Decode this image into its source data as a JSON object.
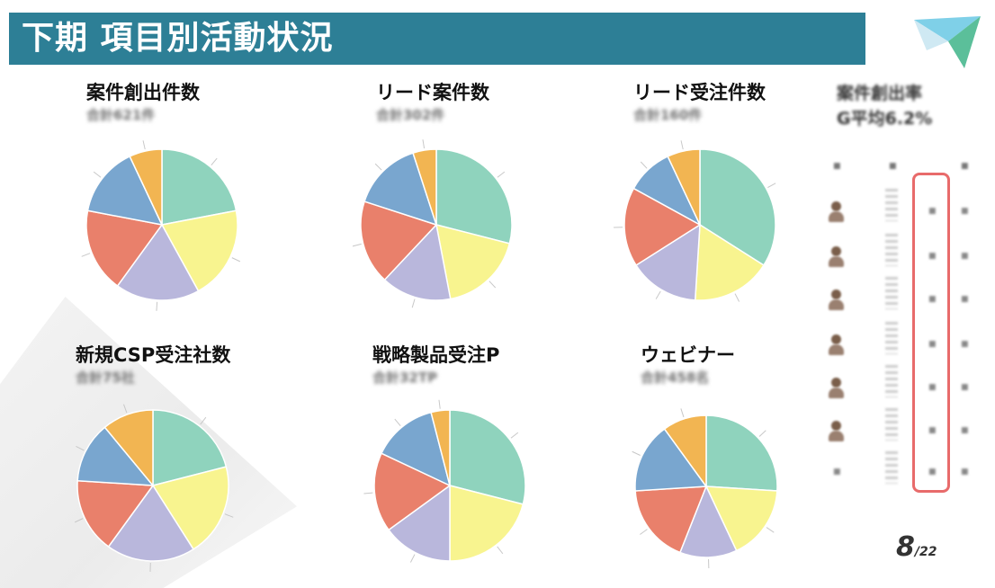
{
  "slide": {
    "title": "下期 項目別活動状況",
    "page_current": "8",
    "page_total": "/22"
  },
  "colors": {
    "title_bar": "#2d7f96",
    "highlight_border": "#e86b6b",
    "slice_palette": [
      "#8fd3bd",
      "#f8f48f",
      "#b9b7dc",
      "#e9806b",
      "#79a6cf",
      "#f2b552"
    ]
  },
  "chart_data": [
    {
      "type": "pie",
      "title": "案件創出件数",
      "subtitle": "合計621件",
      "values": [
        22,
        20,
        18,
        18,
        15,
        7
      ],
      "colors": [
        "#8fd3bd",
        "#f8f48f",
        "#b9b7dc",
        "#e9806b",
        "#79a6cf",
        "#f2b552"
      ]
    },
    {
      "type": "pie",
      "title": "リード案件数",
      "subtitle": "合計302件",
      "values": [
        29,
        18,
        15,
        18,
        15,
        5
      ],
      "colors": [
        "#8fd3bd",
        "#f8f48f",
        "#b9b7dc",
        "#e9806b",
        "#79a6cf",
        "#f2b552"
      ]
    },
    {
      "type": "pie",
      "title": "リード受注件数",
      "subtitle": "合計160件",
      "values": [
        34,
        17,
        15,
        17,
        10,
        7
      ],
      "colors": [
        "#8fd3bd",
        "#f8f48f",
        "#b9b7dc",
        "#e9806b",
        "#79a6cf",
        "#f2b552"
      ]
    },
    {
      "type": "pie",
      "title": "新規CSP受注社数",
      "subtitle": "合計75社",
      "values": [
        21,
        20,
        19,
        16,
        13,
        11
      ],
      "colors": [
        "#8fd3bd",
        "#f8f48f",
        "#b9b7dc",
        "#e9806b",
        "#79a6cf",
        "#f2b552"
      ]
    },
    {
      "type": "pie",
      "title": "戦略製品受注P",
      "subtitle": "合計32TP",
      "values": [
        29,
        21,
        15,
        17,
        14,
        4
      ],
      "colors": [
        "#8fd3bd",
        "#f8f48f",
        "#b9b7dc",
        "#e9806b",
        "#79a6cf",
        "#f2b552"
      ]
    },
    {
      "type": "pie",
      "title": "ウェビナー",
      "subtitle": "合計458名",
      "values": [
        26,
        17,
        13,
        18,
        16,
        10
      ],
      "colors": [
        "#8fd3bd",
        "#f8f48f",
        "#b9b7dc",
        "#e9806b",
        "#79a6cf",
        "#f2b552"
      ]
    }
  ],
  "side_panel": {
    "rate_title": "案件創出率",
    "rate_value": "G平均6.2%"
  }
}
